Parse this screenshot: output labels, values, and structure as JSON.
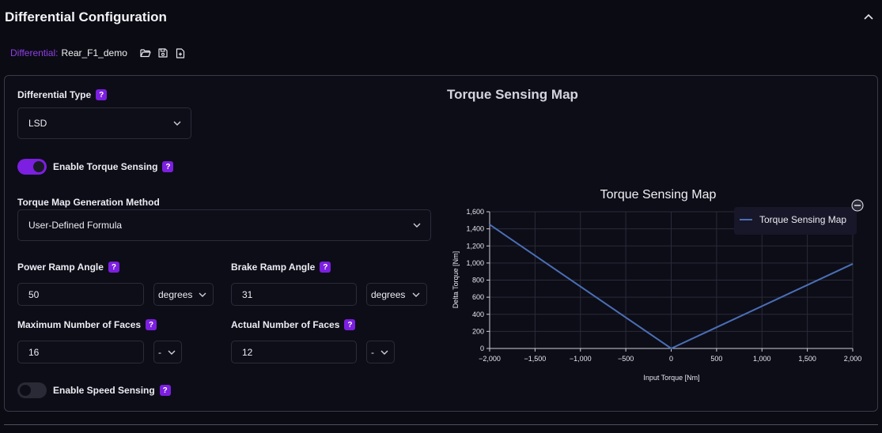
{
  "header": {
    "title": "Differential Configuration"
  },
  "file": {
    "label": "Differential:",
    "name": "Rear_F1_demo"
  },
  "diff_type": {
    "label": "Differential Type",
    "value": "LSD"
  },
  "torque_sensing": {
    "label": "Enable Torque Sensing",
    "enabled": true
  },
  "map_method": {
    "label": "Torque Map Generation Method",
    "value": "User-Defined Formula"
  },
  "power_ramp": {
    "label": "Power Ramp Angle",
    "value": "50",
    "unit": "degrees"
  },
  "brake_ramp": {
    "label": "Brake Ramp Angle",
    "value": "31",
    "unit": "degrees"
  },
  "max_faces": {
    "label": "Maximum Number of Faces",
    "value": "16",
    "unit": "-"
  },
  "actual_faces": {
    "label": "Actual Number of Faces",
    "value": "12",
    "unit": "-"
  },
  "speed_sensing": {
    "label": "Enable Speed Sensing",
    "enabled": false
  },
  "help_glyph": "?",
  "chart_section": {
    "heading": "Torque Sensing Map"
  },
  "colors": {
    "accent": "#7c1fe0",
    "file_label": "#8f3fe6",
    "series": "#4a6fb5"
  },
  "chart_data": {
    "type": "line",
    "title": "Torque Sensing Map",
    "xlabel": "Input Torque [Nm]",
    "ylabel": "Delta Torque [Nm]",
    "xlim": [
      -2000,
      2000
    ],
    "ylim": [
      0,
      1600
    ],
    "xticks": [
      -2000,
      -1500,
      -1000,
      -500,
      0,
      500,
      1000,
      1500,
      2000
    ],
    "xtick_labels": [
      "−2,000",
      "−1,500",
      "−1,000",
      "−500",
      "0",
      "500",
      "1,000",
      "1,500",
      "2,000"
    ],
    "yticks": [
      0,
      200,
      400,
      600,
      800,
      1000,
      1200,
      1400,
      1600
    ],
    "ytick_labels": [
      "0",
      "200",
      "400",
      "600",
      "800",
      "1,000",
      "1,200",
      "1,400",
      "1,600"
    ],
    "series": [
      {
        "name": "Torque Sensing Map",
        "x": [
          -2000,
          0,
          2000
        ],
        "y": [
          1450,
          0,
          990
        ]
      }
    ],
    "legend": "top-right",
    "grid": true
  }
}
